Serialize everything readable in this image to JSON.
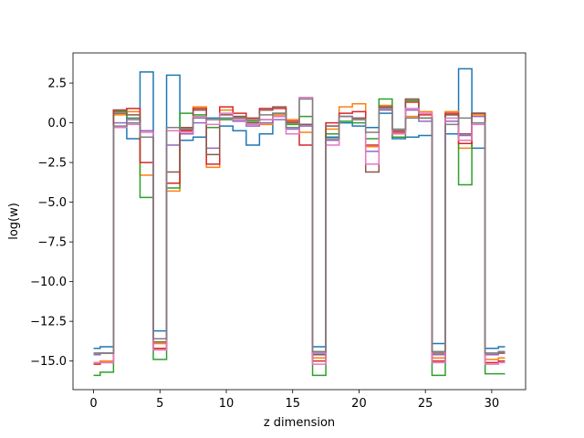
{
  "chart_data": {
    "type": "line",
    "drawstyle": "steps-mid",
    "title": "",
    "xlabel": "z dimension",
    "ylabel": "log(w)",
    "xlim": [
      -1.55,
      32.55
    ],
    "ylim": [
      -16.8,
      4.4
    ],
    "xticks": [
      0,
      5,
      10,
      15,
      20,
      25,
      30
    ],
    "xtick_labels": [
      "0",
      "5",
      "10",
      "15",
      "20",
      "25",
      "30"
    ],
    "yticks": [
      -15.0,
      -12.5,
      -10.0,
      -7.5,
      -5.0,
      -2.5,
      0.0,
      2.5
    ],
    "ytick_labels": [
      "−15.0",
      "−12.5",
      "−10.0",
      "−7.5",
      "−5.0",
      "−2.5",
      "0.0",
      "2.5"
    ],
    "grid": false,
    "legend": "none",
    "x": [
      0,
      1,
      2,
      3,
      4,
      5,
      6,
      7,
      8,
      9,
      10,
      11,
      12,
      13,
      14,
      15,
      16,
      17,
      18,
      19,
      20,
      21,
      22,
      23,
      24,
      25,
      26,
      27,
      28,
      29,
      30,
      31
    ],
    "series": [
      {
        "color": "#1f77b4",
        "values": [
          -14.2,
          -14.1,
          0.8,
          -1.0,
          3.2,
          -13.1,
          3.0,
          -1.1,
          -0.9,
          0.3,
          -0.2,
          -0.5,
          -1.4,
          -0.7,
          0.4,
          -0.3,
          -0.1,
          -14.1,
          -0.9,
          0.0,
          -0.2,
          -0.3,
          0.6,
          -1.0,
          -0.9,
          -0.8,
          -13.9,
          -0.7,
          3.4,
          -1.6,
          -14.2,
          -14.1
        ]
      },
      {
        "color": "#ff7f0e",
        "values": [
          -15.1,
          -15.0,
          0.5,
          0.7,
          -3.3,
          -13.9,
          -4.3,
          -0.4,
          1.0,
          -2.8,
          0.8,
          0.3,
          0.2,
          -0.1,
          0.5,
          0.2,
          -0.6,
          -14.8,
          -0.4,
          1.0,
          1.2,
          -1.5,
          1.1,
          -0.7,
          0.4,
          0.7,
          -14.8,
          0.7,
          -1.6,
          0.5,
          -14.9,
          -14.8
        ]
      },
      {
        "color": "#2ca02c",
        "values": [
          -15.9,
          -15.7,
          0.7,
          0.3,
          -4.7,
          -14.9,
          -4.1,
          0.6,
          0.5,
          -0.3,
          0.2,
          0.4,
          0.1,
          0.2,
          0.6,
          -0.1,
          0.4,
          -15.9,
          -0.7,
          0.1,
          0.0,
          -1.0,
          1.5,
          -0.9,
          1.4,
          0.3,
          -15.9,
          0.5,
          -3.9,
          0.6,
          -15.8,
          -15.8
        ]
      },
      {
        "color": "#d62728",
        "values": [
          -15.2,
          -15.1,
          0.8,
          0.9,
          -2.5,
          -14.2,
          -3.8,
          -0.5,
          0.9,
          -2.6,
          1.0,
          0.6,
          0.3,
          0.9,
          0.9,
          0.1,
          -1.4,
          -15.0,
          0.0,
          0.6,
          0.7,
          -1.4,
          1.0,
          -0.6,
          1.3,
          0.5,
          -15.0,
          0.6,
          -1.3,
          0.6,
          -15.1,
          -15.0
        ]
      },
      {
        "color": "#9467bd",
        "values": [
          -14.6,
          -14.5,
          0.0,
          0.2,
          -0.5,
          -13.6,
          -1.4,
          -0.7,
          0.0,
          -1.6,
          0.3,
          0.1,
          -0.2,
          0.0,
          0.2,
          -0.4,
          -0.2,
          -14.5,
          -1.1,
          0.4,
          0.2,
          -1.8,
          0.8,
          -0.5,
          0.8,
          0.1,
          -14.6,
          0.1,
          -0.8,
          0.4,
          -14.6,
          -14.5
        ]
      },
      {
        "color": "#8c564b",
        "values": [
          -14.5,
          -14.5,
          0.6,
          0.5,
          -0.9,
          -13.8,
          -3.1,
          -0.3,
          0.8,
          -2.0,
          0.5,
          0.4,
          0.0,
          0.8,
          1.0,
          0.0,
          -0.1,
          -14.6,
          -0.2,
          0.4,
          0.3,
          -3.1,
          1.0,
          -0.5,
          1.5,
          0.3,
          -14.5,
          0.5,
          -0.7,
          0.6,
          -14.5,
          -14.5
        ]
      },
      {
        "color": "#e377c2",
        "values": [
          -15.1,
          -15.1,
          -0.3,
          -0.1,
          -0.6,
          -14.3,
          -0.5,
          -0.6,
          0.4,
          -0.1,
          0.6,
          0.2,
          -0.1,
          0.2,
          0.4,
          -0.7,
          1.6,
          -15.2,
          -1.4,
          0.4,
          0.2,
          -2.6,
          0.9,
          -0.7,
          0.9,
          0.6,
          -15.1,
          0.3,
          -1.1,
          -0.1,
          -15.2,
          -15.1
        ]
      },
      {
        "color": "#7f7f7f",
        "values": [
          -14.5,
          -14.5,
          -0.2,
          0.0,
          -0.9,
          -13.6,
          -0.3,
          -0.4,
          0.3,
          0.2,
          0.3,
          0.3,
          0.2,
          0.5,
          0.6,
          -0.3,
          1.5,
          -14.4,
          -1.0,
          0.4,
          0.2,
          -0.6,
          0.9,
          -0.4,
          0.3,
          0.3,
          -14.4,
          -0.1,
          0.3,
          0.0,
          -14.5,
          -14.4
        ]
      }
    ]
  }
}
